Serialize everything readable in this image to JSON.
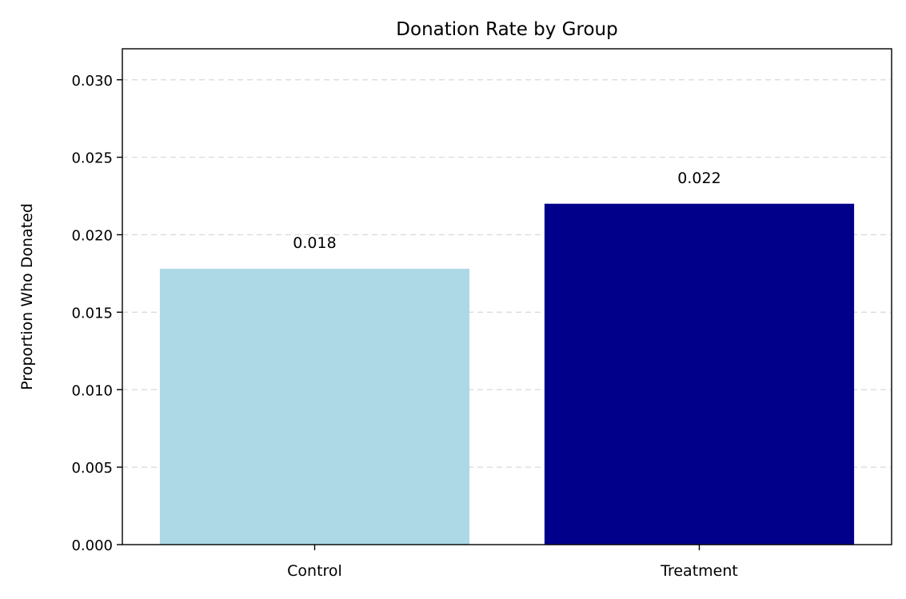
{
  "chart_data": {
    "type": "bar",
    "title": "Donation Rate by Group",
    "xlabel": "",
    "ylabel": "Proportion Who Donated",
    "categories": [
      "Control",
      "Treatment"
    ],
    "values": [
      0.0178,
      0.022
    ],
    "value_labels": [
      "0.018",
      "0.022"
    ],
    "colors": [
      "#add8e6",
      "#00008b"
    ],
    "ylim": [
      0,
      0.032
    ],
    "yticks": [
      0.0,
      0.005,
      0.01,
      0.015,
      0.02,
      0.025,
      0.03
    ],
    "ytick_labels": [
      "0.000",
      "0.005",
      "0.010",
      "0.015",
      "0.020",
      "0.025",
      "0.030"
    ],
    "grid": "y-dashed",
    "legend": "none"
  }
}
